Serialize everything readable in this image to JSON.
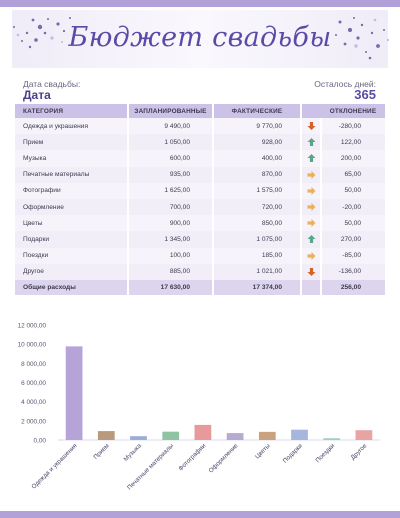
{
  "header": {
    "title": "Бюджет свадьбы"
  },
  "wedding_date": {
    "label": "Дата свадьбы:",
    "value": "Дата"
  },
  "days_left": {
    "label": "Осталось дней:",
    "value": "365"
  },
  "table": {
    "columns": [
      "КАТЕГОРИЯ",
      "ЗАПЛАНИРОВАННЫЕ",
      "ФАКТИЧЕСКИЕ",
      "",
      "ОТКЛОНЕНИЕ"
    ],
    "rows": [
      {
        "category": "Одежда и украшения",
        "planned": "9 490,00",
        "actual": "9 770,00",
        "trend": "down",
        "deviation": "-280,00"
      },
      {
        "category": "Прием",
        "planned": "1 050,00",
        "actual": "928,00",
        "trend": "up",
        "deviation": "122,00"
      },
      {
        "category": "Музыка",
        "planned": "600,00",
        "actual": "400,00",
        "trend": "up",
        "deviation": "200,00"
      },
      {
        "category": "Печатные материалы",
        "planned": "935,00",
        "actual": "870,00",
        "trend": "side",
        "deviation": "65,00"
      },
      {
        "category": "Фотографии",
        "planned": "1 625,00",
        "actual": "1 575,00",
        "trend": "side",
        "deviation": "50,00"
      },
      {
        "category": "Оформление",
        "planned": "700,00",
        "actual": "720,00",
        "trend": "side",
        "deviation": "-20,00"
      },
      {
        "category": "Цветы",
        "planned": "900,00",
        "actual": "850,00",
        "trend": "side",
        "deviation": "50,00"
      },
      {
        "category": "Подарки",
        "planned": "1 345,00",
        "actual": "1 075,00",
        "trend": "up",
        "deviation": "270,00"
      },
      {
        "category": "Поездки",
        "planned": "100,00",
        "actual": "185,00",
        "trend": "side",
        "deviation": "-85,00"
      },
      {
        "category": "Другое",
        "planned": "885,00",
        "actual": "1 021,00",
        "trend": "down",
        "deviation": "-136,00"
      }
    ],
    "total": {
      "label": "Общие расходы",
      "planned": "17 630,00",
      "actual": "17 374,00",
      "deviation": "256,00"
    }
  },
  "trend_colors": {
    "up": "#5aa58a",
    "down": "#d2612c",
    "side": "#e9b25a"
  },
  "chart_data": {
    "type": "bar",
    "categories": [
      "Одежда и украшения",
      "Прием",
      "Музыка",
      "Печатные материалы",
      "Фотографии",
      "Оформление",
      "Цветы",
      "Подарки",
      "Поездки",
      "Другое"
    ],
    "values": [
      9770,
      928,
      400,
      870,
      1575,
      720,
      850,
      1075,
      185,
      1021
    ],
    "bar_colors": [
      "#b6a4d8",
      "#b99a7c",
      "#9aaed6",
      "#8fc4a3",
      "#e89a9a",
      "#b7a9cf",
      "#c9a27f",
      "#a7b6dd",
      "#9ed0ba",
      "#e8a3a3"
    ],
    "ylim": [
      0,
      12000
    ],
    "yticks": [
      0,
      2000,
      4000,
      6000,
      8000,
      10000,
      12000
    ],
    "ytick_labels": [
      "0,00",
      "2 000,00",
      "4 000,00",
      "6 000,00",
      "8 000,00",
      "10 000,00",
      "12 000,00"
    ],
    "grid": false,
    "title": "",
    "xlabel": "",
    "ylabel": ""
  }
}
